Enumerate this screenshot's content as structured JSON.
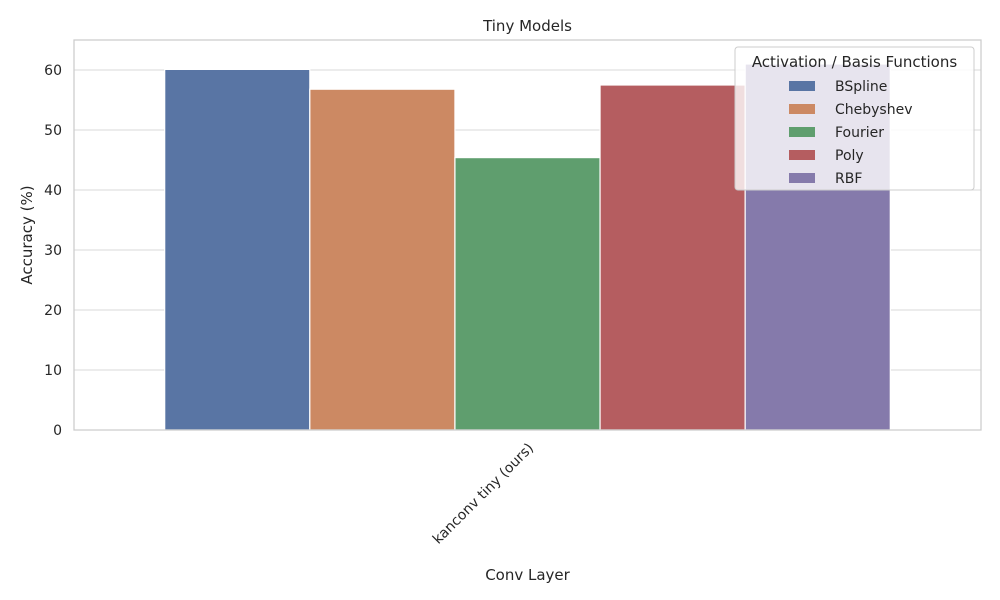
{
  "chart_data": {
    "type": "bar",
    "title": "Tiny Models",
    "xlabel": "Conv Layer",
    "ylabel": "Accuracy (%)",
    "categories": [
      "kanconv tiny (ours)"
    ],
    "ylim": [
      0,
      65
    ],
    "yticks": [
      0,
      10,
      20,
      30,
      40,
      50,
      60
    ],
    "grid": true,
    "legend": {
      "title": "Activation / Basis Functions",
      "placement": "top-right"
    },
    "series": [
      {
        "name": "BSpline",
        "values": [
          60.1
        ],
        "color": "#5975a4"
      },
      {
        "name": "Chebyshev",
        "values": [
          56.8
        ],
        "color": "#cc8963"
      },
      {
        "name": "Fourier",
        "values": [
          45.4
        ],
        "color": "#5f9e6e"
      },
      {
        "name": "Poly",
        "values": [
          57.5
        ],
        "color": "#b55d60"
      },
      {
        "name": "RBF",
        "values": [
          61.0
        ],
        "color": "#857aab"
      }
    ]
  }
}
